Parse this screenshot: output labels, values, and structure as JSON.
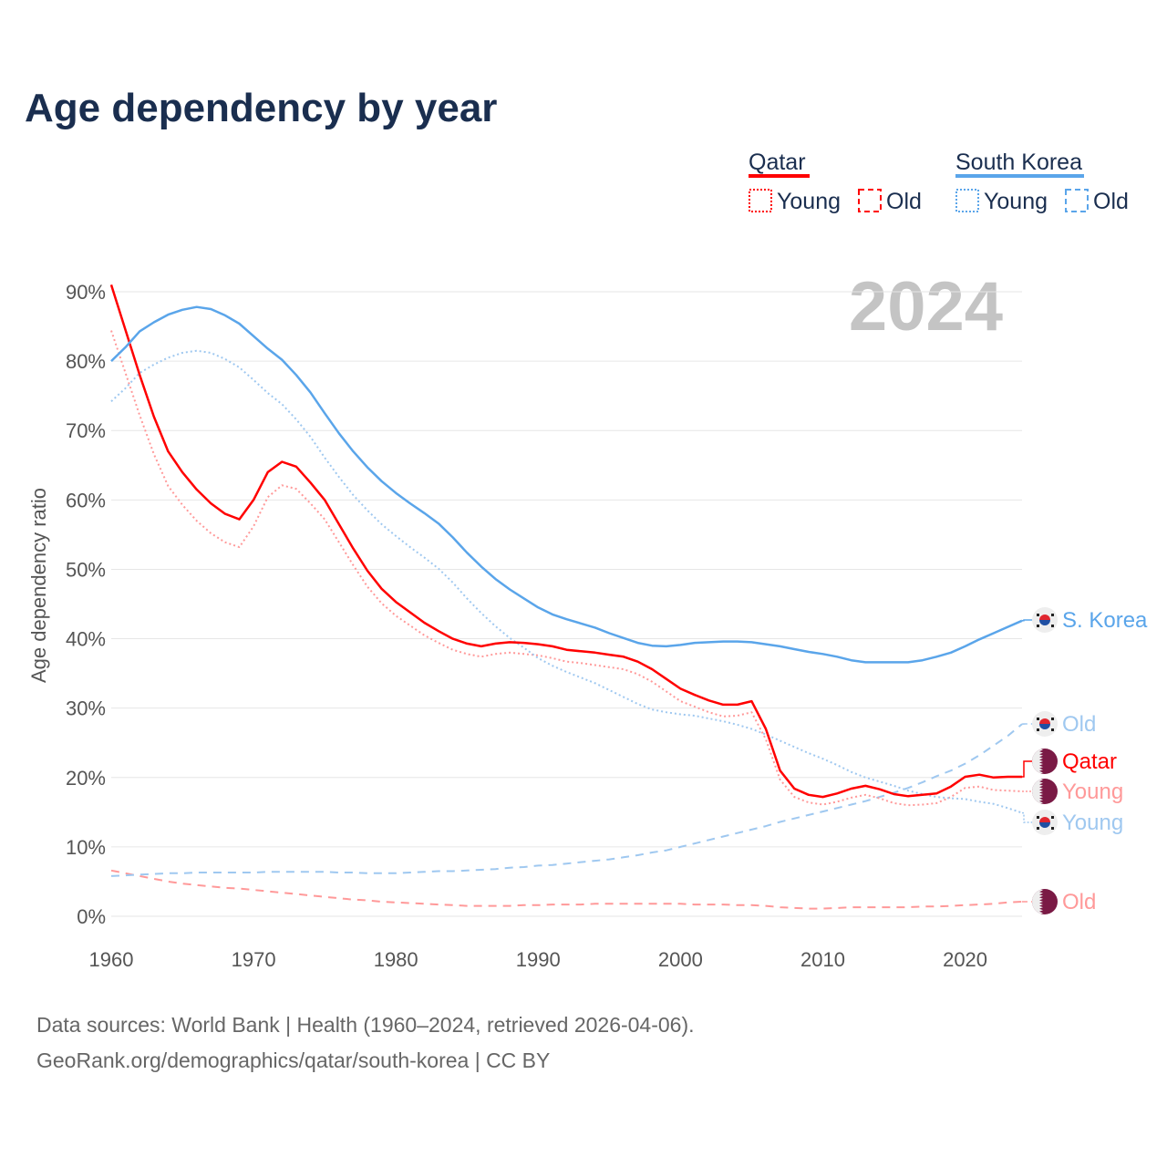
{
  "chart_data": {
    "type": "line",
    "title": "Age dependency by year",
    "xlabel": "",
    "ylabel": "Age dependency ratio",
    "xlim": [
      1960,
      2024
    ],
    "ylim": [
      0,
      90
    ],
    "grid": true,
    "legend_position": "top-right",
    "current_year_label": "2024",
    "x_ticks": [
      "1960",
      "1970",
      "1980",
      "1990",
      "2000",
      "2010",
      "2020"
    ],
    "y_ticks": [
      "0%",
      "10%",
      "20%",
      "30%",
      "40%",
      "50%",
      "60%",
      "70%",
      "80%",
      "90%"
    ],
    "legend": {
      "groups": [
        {
          "name": "Qatar",
          "items": [
            "Young",
            "Old"
          ]
        },
        {
          "name": "South Korea",
          "items": [
            "Young",
            "Old"
          ]
        }
      ]
    },
    "x_start": 1960,
    "series": [
      {
        "name": "Qatar",
        "label": "Qatar",
        "country": "qatar",
        "style": "solid",
        "color": "#ff0000",
        "values": [
          91,
          84.5,
          78,
          72,
          67,
          64,
          61.5,
          59.5,
          58,
          57.2,
          60,
          64,
          65.5,
          64.8,
          62.5,
          60,
          56.5,
          53,
          49.8,
          47.2,
          45.3,
          43.8,
          42.3,
          41.1,
          40,
          39.3,
          38.9,
          39.3,
          39.5,
          39.4,
          39.2,
          38.9,
          38.4,
          38.2,
          38,
          37.7,
          37.4,
          36.7,
          35.6,
          34.2,
          32.8,
          31.9,
          31.1,
          30.5,
          30.5,
          31,
          27,
          21,
          18.4,
          17.5,
          17.2,
          17.7,
          18.4,
          18.8,
          18.3,
          17.6,
          17.3,
          17.5,
          17.7,
          18.7,
          20.1,
          20.4,
          20,
          20.1,
          20.1
        ]
      },
      {
        "name": "Qatar Young",
        "label": "Young",
        "country": "qatar",
        "style": "dotted",
        "color": "#ff9999",
        "values": [
          84.4,
          78.3,
          72.2,
          66.6,
          62,
          59.3,
          57,
          55.2,
          53.9,
          53.2,
          56.2,
          60.4,
          62.1,
          61.6,
          59.5,
          57.2,
          53.9,
          50.6,
          47.5,
          45.1,
          43.3,
          41.9,
          40.5,
          39.4,
          38.4,
          37.8,
          37.4,
          37.8,
          38,
          37.8,
          37.6,
          37.2,
          36.7,
          36.5,
          36.2,
          35.9,
          35.6,
          34.9,
          33.8,
          32.4,
          31,
          30.2,
          29.4,
          28.8,
          28.9,
          29.4,
          25.5,
          19.7,
          17.2,
          16.4,
          16.1,
          16.5,
          17.1,
          17.5,
          17,
          16.3,
          16,
          16.1,
          16.3,
          17.2,
          18.5,
          18.7,
          18.2,
          18.1,
          18
        ]
      },
      {
        "name": "Qatar Old",
        "label": "Old",
        "country": "qatar",
        "style": "dashed",
        "color": "#ff9999",
        "values": [
          6.6,
          6.2,
          5.8,
          5.4,
          5,
          4.7,
          4.5,
          4.3,
          4.1,
          4,
          3.8,
          3.6,
          3.4,
          3.2,
          3,
          2.8,
          2.6,
          2.4,
          2.3,
          2.1,
          2,
          1.9,
          1.8,
          1.7,
          1.6,
          1.5,
          1.5,
          1.5,
          1.5,
          1.6,
          1.6,
          1.7,
          1.7,
          1.7,
          1.8,
          1.8,
          1.8,
          1.8,
          1.8,
          1.8,
          1.8,
          1.7,
          1.7,
          1.7,
          1.6,
          1.6,
          1.5,
          1.3,
          1.2,
          1.1,
          1.1,
          1.2,
          1.3,
          1.3,
          1.3,
          1.3,
          1.3,
          1.4,
          1.4,
          1.5,
          1.6,
          1.7,
          1.8,
          2,
          2.1
        ]
      },
      {
        "name": "South Korea",
        "label": "S. Korea",
        "country": "korea",
        "style": "solid",
        "color": "#5aa5ea",
        "values": [
          80,
          82,
          84.3,
          85.6,
          86.7,
          87.4,
          87.8,
          87.5,
          86.6,
          85.4,
          83.6,
          81.8,
          80.2,
          78,
          75.5,
          72.5,
          69.6,
          67,
          64.7,
          62.7,
          61,
          59.5,
          58.1,
          56.6,
          54.6,
          52.4,
          50.4,
          48.6,
          47.1,
          45.8,
          44.5,
          43.5,
          42.8,
          42.2,
          41.6,
          40.8,
          40.1,
          39.4,
          39,
          38.9,
          39.1,
          39.4,
          39.5,
          39.6,
          39.6,
          39.5,
          39.2,
          38.9,
          38.5,
          38.1,
          37.8,
          37.4,
          36.9,
          36.6,
          36.6,
          36.6,
          36.6,
          36.9,
          37.4,
          38,
          38.9,
          39.9,
          40.8,
          41.7,
          42.6
        ]
      },
      {
        "name": "South Korea Young",
        "label": "Young",
        "country": "korea",
        "style": "dotted",
        "color": "#9fc8f0",
        "values": [
          74.2,
          76.1,
          78.3,
          79.5,
          80.5,
          81.2,
          81.5,
          81.2,
          80.3,
          79.1,
          77.3,
          75.4,
          73.8,
          71.6,
          69.1,
          66.1,
          63.3,
          60.7,
          58.5,
          56.5,
          54.8,
          53.2,
          51.7,
          50.1,
          48.1,
          45.8,
          43.7,
          41.8,
          40.1,
          38.7,
          37.2,
          36.1,
          35.2,
          34.4,
          33.6,
          32.6,
          31.6,
          30.6,
          29.8,
          29.4,
          29.1,
          28.9,
          28.5,
          28.1,
          27.6,
          27,
          26.2,
          25.3,
          24.4,
          23.5,
          22.7,
          21.8,
          20.8,
          20,
          19.4,
          18.8,
          18.1,
          17.6,
          17.2,
          17,
          16.9,
          16.5,
          16.2,
          15.6,
          14.9
        ]
      },
      {
        "name": "South Korea Old",
        "label": "Old",
        "country": "korea",
        "style": "dashed",
        "color": "#9fc8f0",
        "values": [
          5.8,
          5.9,
          6,
          6.1,
          6.2,
          6.2,
          6.3,
          6.3,
          6.3,
          6.3,
          6.3,
          6.4,
          6.4,
          6.4,
          6.4,
          6.4,
          6.3,
          6.3,
          6.2,
          6.2,
          6.2,
          6.3,
          6.4,
          6.5,
          6.5,
          6.6,
          6.7,
          6.8,
          7,
          7.1,
          7.3,
          7.4,
          7.6,
          7.8,
          8,
          8.2,
          8.5,
          8.8,
          9.2,
          9.5,
          10,
          10.5,
          11,
          11.5,
          12,
          12.5,
          13,
          13.6,
          14.1,
          14.6,
          15.1,
          15.6,
          16.1,
          16.6,
          17.2,
          17.8,
          18.5,
          19.3,
          20.2,
          21,
          22,
          23.2,
          24.6,
          26,
          27.7
        ]
      }
    ]
  },
  "colors": {
    "title": "#1a2e4f",
    "qatar": "#ff0000",
    "qatar_light": "#ff9999",
    "korea": "#5aa5ea",
    "korea_light": "#9fc8f0",
    "qatar_flag": "#7a1a45"
  },
  "footer": {
    "line1": "Data sources: World Bank | Health (1960–2024, retrieved 2026-04-06).",
    "line2": "GeoRank.org/demographics/qatar/south-korea | CC BY"
  }
}
